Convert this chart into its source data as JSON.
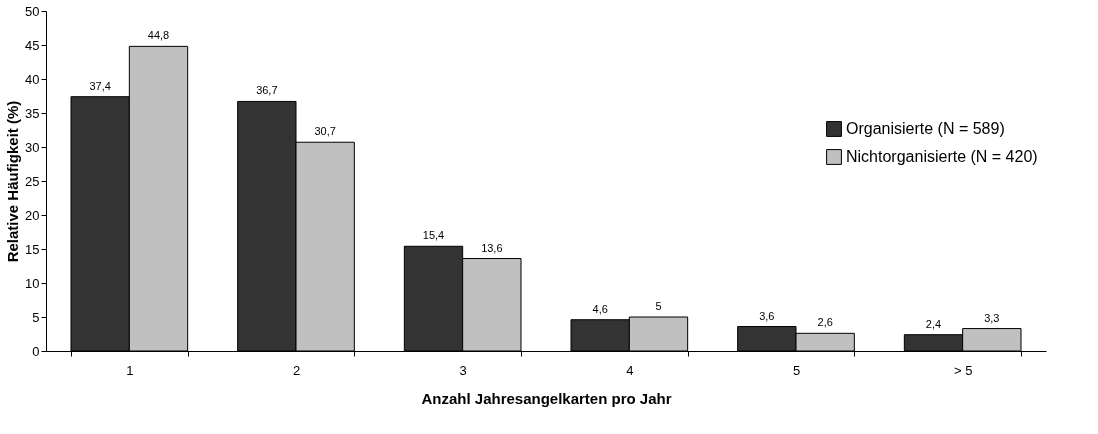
{
  "chart_data": {
    "type": "bar",
    "xlabel": "Anzahl Jahresangelkarten pro Jahr",
    "ylabel": "Relative Häufigkeit (%)",
    "categories": [
      "1",
      "2",
      "3",
      "4",
      "5",
      "> 5"
    ],
    "series": [
      {
        "name": "Organisierte (N = 589)",
        "color": "#333333",
        "values": [
          37.4,
          36.7,
          15.4,
          4.6,
          3.6,
          2.4
        ],
        "value_labels": [
          "37,4",
          "36,7",
          "15,4",
          "4,6",
          "3,6",
          "2,4"
        ]
      },
      {
        "name": "Nichtorganisierte (N = 420)",
        "color": "#c0c0c0",
        "values": [
          44.8,
          30.7,
          13.6,
          5,
          2.6,
          3.3
        ],
        "value_labels": [
          "44,8",
          "30,7",
          "13,6",
          "5",
          "2,6",
          "3,3"
        ]
      }
    ],
    "ylim": [
      0,
      50
    ],
    "yticks": [
      0,
      5,
      10,
      15,
      20,
      25,
      30,
      35,
      40,
      45,
      50
    ],
    "grid": false,
    "legend": "right"
  }
}
